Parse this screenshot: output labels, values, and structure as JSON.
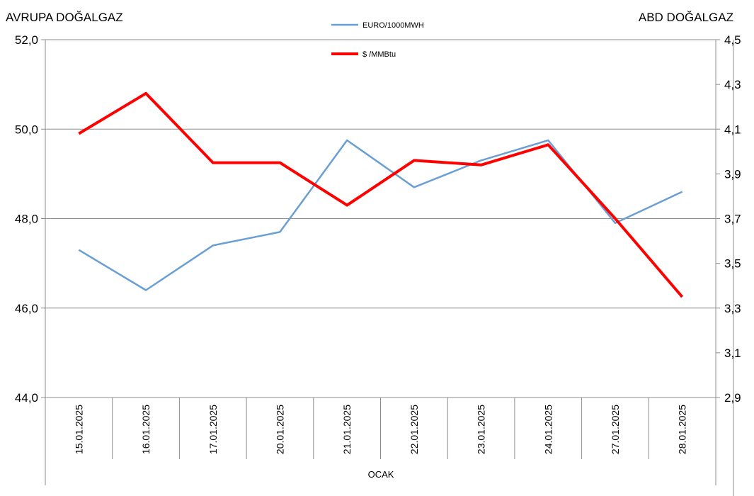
{
  "chart_data": {
    "type": "line",
    "left_axis_title": "AVRUPA DOĞALGAZ",
    "right_axis_title": "ABD DOĞALGAZ",
    "xlabel": "OCAK",
    "categories": [
      "15.01.2025",
      "16.01.2025",
      "17.01.2025",
      "20.01.2025",
      "21.01.2025",
      "22.01.2025",
      "23.01.2025",
      "24.01.2025",
      "27.01.2025",
      "28.01.2025"
    ],
    "y_left": {
      "min": 44.0,
      "max": 52.0,
      "ticks": [
        "44,0",
        "46,0",
        "48,0",
        "50,0",
        "52,0"
      ]
    },
    "y_right": {
      "min": 2.9,
      "max": 4.5,
      "ticks": [
        "2,9",
        "3,1",
        "3,3",
        "3,5",
        "3,7",
        "3,9",
        "4,1",
        "4,3",
        "4,5"
      ]
    },
    "grid": true,
    "legend_placement": "top-center",
    "series": [
      {
        "name": "EURO/1000MWH",
        "axis": "left",
        "color": "#6a9fd4",
        "values": [
          47.3,
          46.4,
          47.4,
          47.7,
          49.75,
          48.7,
          49.3,
          49.75,
          47.9,
          48.6
        ]
      },
      {
        "name": "$ /MMBtu",
        "axis": "right",
        "color": "#ff0000",
        "values": [
          4.08,
          4.26,
          3.95,
          3.95,
          3.76,
          3.96,
          3.94,
          4.03,
          3.7,
          3.35
        ]
      }
    ]
  }
}
